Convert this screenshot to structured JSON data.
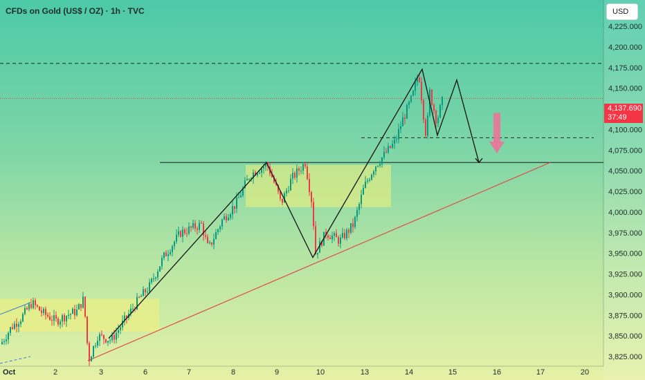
{
  "header": {
    "title": "CFDs on Gold (US$ / OZ) · 1h · TVC",
    "currency_button": "USD"
  },
  "price_tag": {
    "price": "4,137.690",
    "countdown": "37:49",
    "color": "#f23645"
  },
  "chart_data": {
    "type": "candlestick",
    "title": "CFDs on Gold (US$ / OZ) · 1h · TVC",
    "y_axis": {
      "range": [
        3815,
        4240
      ],
      "tick_labels": [
        "4,225.000",
        "4,200.000",
        "4,175.000",
        "4,150.000",
        "4,100.000",
        "4,075.000",
        "4,050.000",
        "4,025.000",
        "4,000.000",
        "3,975.000",
        "3,950.000",
        "3,925.000",
        "3,900.000",
        "3,875.000",
        "3,850.000",
        "3,825.000"
      ],
      "tick_values": [
        4225,
        4200,
        4175,
        4150,
        4100,
        4075,
        4050,
        4025,
        4000,
        3975,
        3950,
        3925,
        3900,
        3875,
        3850,
        3825
      ]
    },
    "x_axis": {
      "tick_labels": [
        "Oct",
        "2",
        "3",
        "6",
        "7",
        "8",
        "9",
        "10",
        "13",
        "14",
        "15",
        "16",
        "17",
        "20"
      ],
      "tick_index": [
        4,
        80,
        146,
        210,
        273,
        337,
        400,
        463,
        527,
        591,
        654,
        718,
        781,
        845
      ]
    },
    "last_price": 4137.69,
    "ohlc_anchors": [
      [
        0,
        3840
      ],
      [
        15,
        3860
      ],
      [
        30,
        3872
      ],
      [
        45,
        3890
      ],
      [
        60,
        3878
      ],
      [
        80,
        3868
      ],
      [
        95,
        3875
      ],
      [
        110,
        3880
      ],
      [
        120,
        3895
      ],
      [
        127,
        3820
      ],
      [
        140,
        3850
      ],
      [
        160,
        3845
      ],
      [
        180,
        3870
      ],
      [
        200,
        3895
      ],
      [
        215,
        3910
      ],
      [
        235,
        3945
      ],
      [
        260,
        3975
      ],
      [
        290,
        3985
      ],
      [
        300,
        3955
      ],
      [
        320,
        3990
      ],
      [
        340,
        4010
      ],
      [
        360,
        4045
      ],
      [
        385,
        4058
      ],
      [
        400,
        4025
      ],
      [
        405,
        4010
      ],
      [
        420,
        4040
      ],
      [
        440,
        4060
      ],
      [
        450,
        4010
      ],
      [
        455,
        3950
      ],
      [
        470,
        3975
      ],
      [
        490,
        3965
      ],
      [
        510,
        3985
      ],
      [
        525,
        4030
      ],
      [
        540,
        4055
      ],
      [
        555,
        4070
      ],
      [
        570,
        4085
      ],
      [
        580,
        4110
      ],
      [
        595,
        4140
      ],
      [
        604,
        4170
      ],
      [
        610,
        4125
      ],
      [
        615,
        4090
      ],
      [
        620,
        4145
      ],
      [
        630,
        4110
      ],
      [
        640,
        4140
      ]
    ],
    "levels": [
      {
        "name": "resistance-top",
        "value": 4180,
        "style": "dashed",
        "color": "#1c2b2b"
      },
      {
        "name": "last-price",
        "value": 4137.69,
        "style": "dotted",
        "color": "#f23645"
      },
      {
        "name": "support-minor",
        "value": 4090,
        "style": "dashed",
        "color": "#1c2b2b"
      },
      {
        "name": "neckline",
        "value": 4060,
        "style": "solid",
        "color": "#1c2b2b"
      }
    ],
    "zones": [
      {
        "name": "range-box-1",
        "x": [
          0,
          230
        ],
        "y": [
          3855,
          3895
        ],
        "color": "#f5f07a"
      },
      {
        "name": "range-box-2",
        "x": [
          355,
          565
        ],
        "y": [
          4006,
          4057
        ],
        "color": "#f5f07a"
      }
    ],
    "trendline": {
      "name": "rising-support",
      "from": [
        127,
        3820
      ],
      "to": [
        795,
        4060
      ],
      "color": "#e04b4b"
    },
    "pattern_path": [
      [
        157,
        3847
      ],
      [
        385,
        4060
      ],
      [
        452,
        3945
      ],
      [
        610,
        4173
      ],
      [
        632,
        4093
      ],
      [
        660,
        4160
      ],
      [
        692,
        4060
      ]
    ],
    "down_arrow": {
      "x": 718,
      "from": 4120,
      "to": 4071,
      "color": "#f36f9a"
    }
  }
}
